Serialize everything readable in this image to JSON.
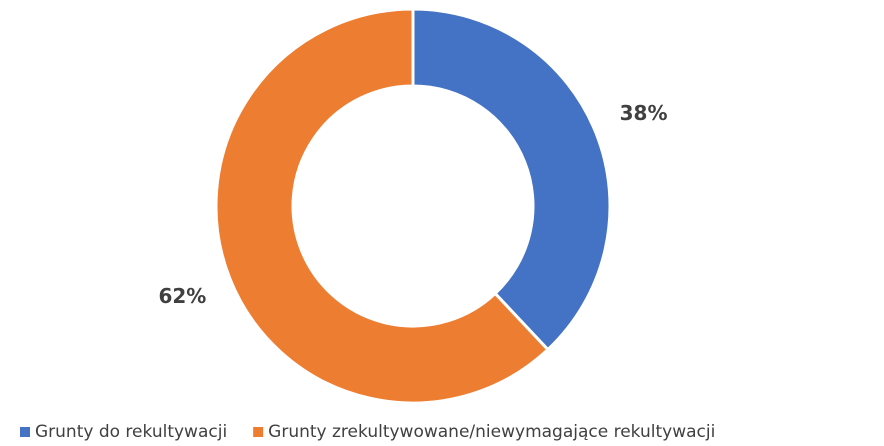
{
  "chart_data": {
    "type": "donut",
    "categories": [
      "Grunty do rekultywacji",
      "Grunty zrekultywowane/niewymagające rekultywacji"
    ],
    "values": [
      38,
      62
    ],
    "value_labels": [
      "38%",
      "62%"
    ],
    "colors": [
      "#4472c4",
      "#ed7d31"
    ],
    "legend": "bottom"
  }
}
